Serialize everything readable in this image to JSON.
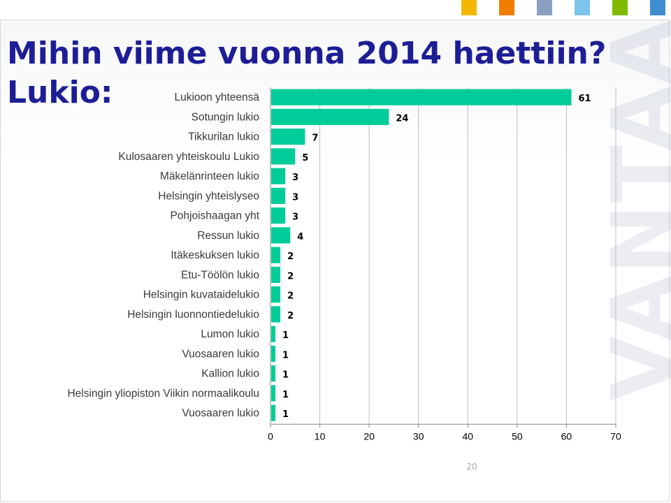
{
  "slide": {
    "title_line1": "Mihin viime vuonna 2014 haettiin?",
    "title_line2": "Lukio:",
    "page_number": "20",
    "title_color": "#1d1e96",
    "brand_colors": [
      "#f5b800",
      "#ee7d00",
      "#8aa0c0",
      "#7dc4ea",
      "#7fba00",
      "#3e8ed0"
    ]
  },
  "watermark": {
    "text": "VANTAA"
  },
  "chart_data": {
    "type": "bar",
    "orientation": "horizontal",
    "title": "",
    "xlabel": "",
    "ylabel": "",
    "bar_color": "#00cc99",
    "categories": [
      "Lukioon yhteensä",
      "Sotungin lukio",
      "Tikkurilan lukio",
      "Kulosaaren yhteiskoulu Lukio",
      "Mäkelänrinteen lukio",
      "Helsingin yhteislyseo",
      "Pohjoishaagan yht",
      "Ressun lukio",
      "Itäkeskuksen lukio",
      "Etu-Töölön lukio",
      "Helsingin kuvataidelukio",
      "Helsingin luonnontiedelukio",
      "Lumon lukio",
      "Vuosaaren lukio",
      "Kallion lukio",
      "Helsingin yliopiston Viikin normaalikoulu",
      "Vuosaaren lukio"
    ],
    "values": [
      61,
      24,
      7,
      5,
      3,
      3,
      3,
      4,
      2,
      2,
      2,
      2,
      1,
      1,
      1,
      1,
      1
    ],
    "xlim": [
      0,
      70
    ],
    "xticks": [
      0,
      10,
      20,
      30,
      40,
      50,
      60,
      70
    ],
    "grid": "vertical",
    "legend": "none",
    "data_labels": true
  }
}
